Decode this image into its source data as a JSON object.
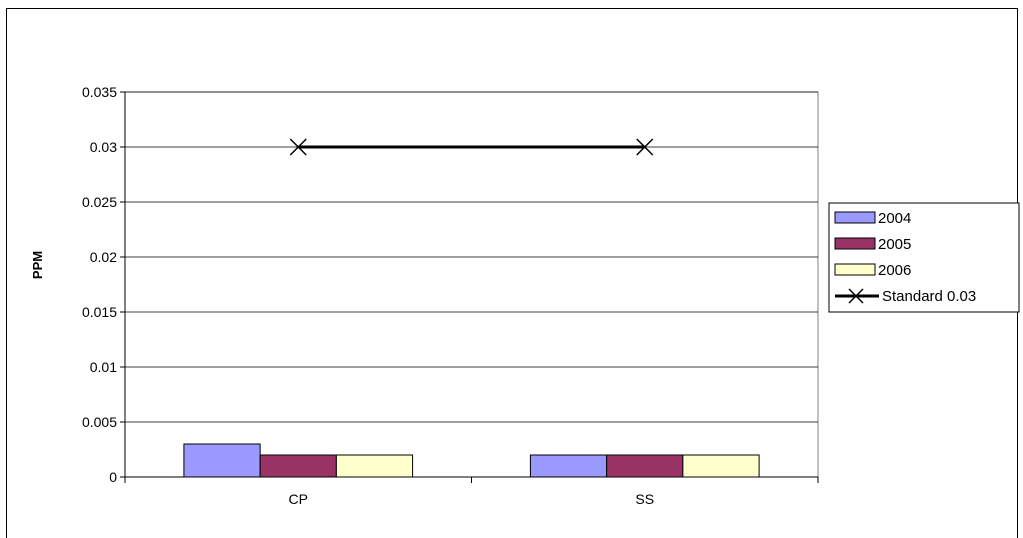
{
  "chart_data": {
    "type": "bar",
    "title": "",
    "xlabel": "",
    "ylabel": "PPM",
    "categories": [
      "CP",
      "SS"
    ],
    "ylim": [
      0,
      0.035
    ],
    "yticks": [
      "0.035",
      "0.03",
      "0.025",
      "0.02",
      "0.015",
      "0.01",
      "0.005",
      "0"
    ],
    "ytick_values": [
      0.035,
      0.03,
      0.025,
      0.02,
      0.015,
      0.01,
      0.005,
      0
    ],
    "grid": true,
    "legend_position": "right",
    "series": [
      {
        "name": "2004",
        "kind": "bar",
        "color": "#9999FF",
        "values": [
          0.003,
          0.002
        ]
      },
      {
        "name": "2005",
        "kind": "bar",
        "color": "#993366",
        "values": [
          0.002,
          0.002
        ]
      },
      {
        "name": "2006",
        "kind": "bar",
        "color": "#FFFFCC",
        "values": [
          0.002,
          0.002
        ]
      },
      {
        "name": "Standard 0.03",
        "kind": "line",
        "color": "#000000",
        "marker": "x",
        "values": [
          0.03,
          0.03
        ]
      }
    ]
  }
}
